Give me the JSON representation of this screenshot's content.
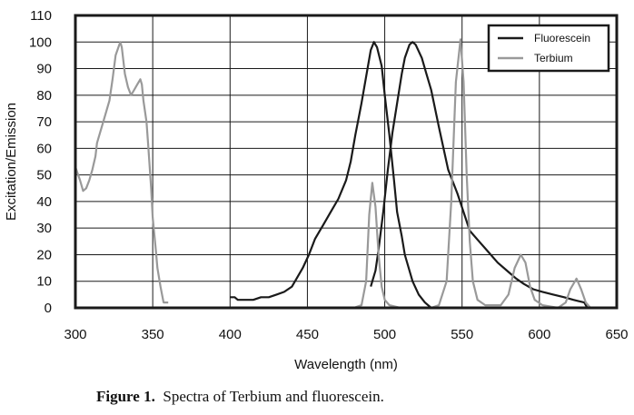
{
  "chart_data": {
    "type": "line",
    "title": "",
    "xlabel": "Wavelength (nm)",
    "ylabel": "Excitation/Emission",
    "xlim": [
      300,
      650
    ],
    "ylim": [
      0,
      110
    ],
    "xticks": [
      300,
      350,
      400,
      450,
      500,
      550,
      600,
      650
    ],
    "yticks": [
      0,
      10,
      20,
      30,
      40,
      50,
      60,
      70,
      80,
      90,
      100,
      110
    ],
    "grid": true,
    "legend_position": "top-right",
    "series": [
      {
        "name": "Fluorescein",
        "color": "#1a1a1a",
        "segments": [
          [
            [
              400,
              4
            ],
            [
              403,
              4
            ],
            [
              405,
              3
            ],
            [
              410,
              3
            ],
            [
              415,
              3
            ],
            [
              420,
              4
            ],
            [
              425,
              4
            ],
            [
              430,
              5
            ],
            [
              435,
              6
            ],
            [
              440,
              8
            ],
            [
              443,
              11
            ],
            [
              447,
              15
            ],
            [
              451,
              20
            ],
            [
              455,
              26
            ],
            [
              460,
              31
            ],
            [
              465,
              36
            ],
            [
              470,
              41
            ],
            [
              475,
              48
            ],
            [
              478,
              55
            ],
            [
              481,
              65
            ],
            [
              485,
              77
            ],
            [
              488,
              87
            ],
            [
              491,
              97
            ],
            [
              493,
              100
            ],
            [
              495,
              98
            ],
            [
              498,
              91
            ],
            [
              500,
              80
            ],
            [
              503,
              65
            ],
            [
              506,
              48
            ],
            [
              508,
              36
            ],
            [
              511,
              27
            ],
            [
              513,
              20
            ],
            [
              516,
              14
            ],
            [
              518,
              10
            ],
            [
              522,
              5
            ],
            [
              526,
              2
            ],
            [
              530,
              0
            ]
          ],
          [
            [
              491,
              8
            ],
            [
              494,
              14
            ],
            [
              496,
              22
            ],
            [
              499,
              36
            ],
            [
              502,
              52
            ],
            [
              505,
              66
            ],
            [
              508,
              77
            ],
            [
              511,
              88
            ],
            [
              513,
              94
            ],
            [
              516,
              99
            ],
            [
              518,
              100
            ],
            [
              520,
              99
            ],
            [
              524,
              94
            ],
            [
              527,
              88
            ],
            [
              530,
              82
            ],
            [
              535,
              68
            ],
            [
              538,
              60
            ],
            [
              541,
              52
            ],
            [
              547,
              43
            ],
            [
              551,
              36
            ],
            [
              555,
              29
            ],
            [
              561,
              25
            ],
            [
              567,
              21
            ],
            [
              573,
              17
            ],
            [
              579,
              14
            ],
            [
              585,
              11
            ],
            [
              590,
              9
            ],
            [
              596,
              7
            ],
            [
              602,
              6
            ],
            [
              609,
              5
            ],
            [
              616,
              4
            ],
            [
              622,
              3
            ],
            [
              629,
              2
            ],
            [
              631,
              0
            ]
          ]
        ]
      },
      {
        "name": "Terbium",
        "color": "#999999",
        "segments": [
          [
            [
              300,
              53
            ],
            [
              303,
              48
            ],
            [
              305,
              44
            ],
            [
              307,
              45
            ],
            [
              309,
              48
            ],
            [
              311,
              52
            ],
            [
              313,
              57
            ],
            [
              314,
              62
            ],
            [
              318,
              70
            ],
            [
              322,
              78
            ],
            [
              324,
              86
            ],
            [
              326,
              95
            ],
            [
              329,
              100
            ],
            [
              330,
              98
            ],
            [
              332,
              88
            ],
            [
              334,
              83
            ],
            [
              336,
              80
            ],
            [
              338,
              82
            ],
            [
              340,
              84
            ],
            [
              342,
              86
            ],
            [
              343,
              84
            ],
            [
              344,
              78
            ],
            [
              346,
              70
            ],
            [
              347,
              62
            ],
            [
              349,
              45
            ],
            [
              350,
              34
            ],
            [
              352,
              22
            ],
            [
              353,
              15
            ],
            [
              355,
              8
            ],
            [
              356,
              5
            ],
            [
              357,
              2
            ],
            [
              360,
              2
            ]
          ],
          [
            [
              480,
              0
            ],
            [
              485,
              1
            ],
            [
              488,
              10
            ],
            [
              490,
              35
            ],
            [
              492,
              47
            ],
            [
              494,
              38
            ],
            [
              496,
              20
            ],
            [
              498,
              8
            ],
            [
              500,
              3
            ],
            [
              503,
              1
            ],
            [
              510,
              0
            ],
            [
              530,
              0
            ],
            [
              535,
              1
            ],
            [
              540,
              10
            ],
            [
              543,
              40
            ],
            [
              546,
              85
            ],
            [
              549,
              101
            ],
            [
              551,
              85
            ],
            [
              553,
              50
            ],
            [
              555,
              25
            ],
            [
              557,
              10
            ],
            [
              560,
              3
            ],
            [
              565,
              1
            ],
            [
              575,
              1
            ],
            [
              580,
              5
            ],
            [
              584,
              15
            ],
            [
              588,
              20
            ],
            [
              591,
              17
            ],
            [
              594,
              8
            ],
            [
              597,
              3
            ],
            [
              602,
              1
            ],
            [
              612,
              0
            ],
            [
              617,
              2
            ],
            [
              620,
              7
            ],
            [
              624,
              11
            ],
            [
              627,
              7
            ],
            [
              630,
              2
            ],
            [
              633,
              0
            ]
          ]
        ]
      }
    ]
  },
  "caption": {
    "label": "Figure 1.",
    "text": "  Spectra of Terbium and fluorescein."
  }
}
